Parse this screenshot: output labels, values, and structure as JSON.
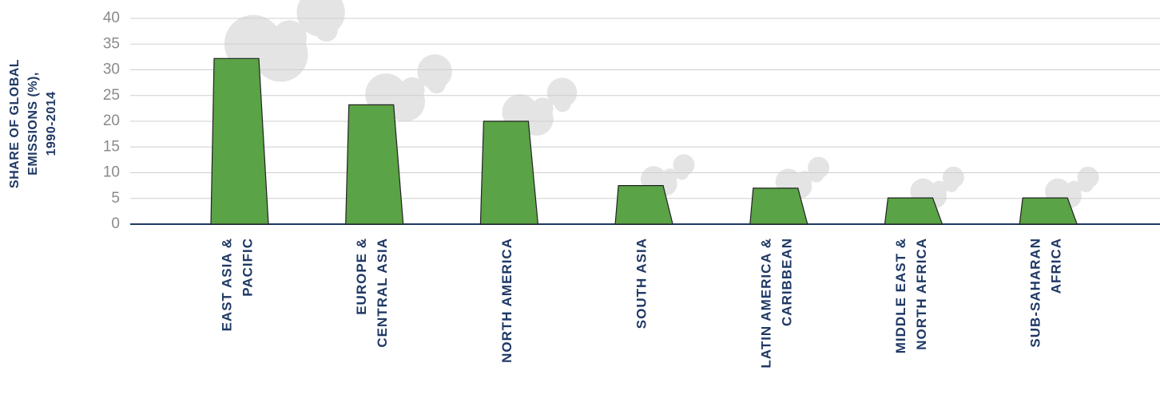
{
  "chart_data": {
    "type": "bar",
    "y_label": [
      "SHARE OF GLOBAL",
      "EMISSIONS (%),",
      "1990-2014"
    ],
    "categories": [
      [
        "EAST ASIA &",
        "PACIFIC"
      ],
      [
        "EUROPE &",
        "CENTRAL ASIA"
      ],
      [
        "NORTH AMERICA"
      ],
      [
        "SOUTH ASIA"
      ],
      [
        "LATIN AMERICA &",
        "CARIBBEAN"
      ],
      [
        "MIDDLE EAST &",
        "NORTH AFRICA"
      ],
      [
        "SUB-SAHARAN",
        "AFRICA"
      ]
    ],
    "values": [
      32.2,
      23.2,
      20,
      7.5,
      7,
      5.1,
      5.1
    ],
    "color": "#5aa346",
    "ylim": [
      0,
      40
    ],
    "yticks": [
      0,
      5,
      10,
      15,
      20,
      25,
      30,
      35,
      40
    ],
    "grid": true
  }
}
